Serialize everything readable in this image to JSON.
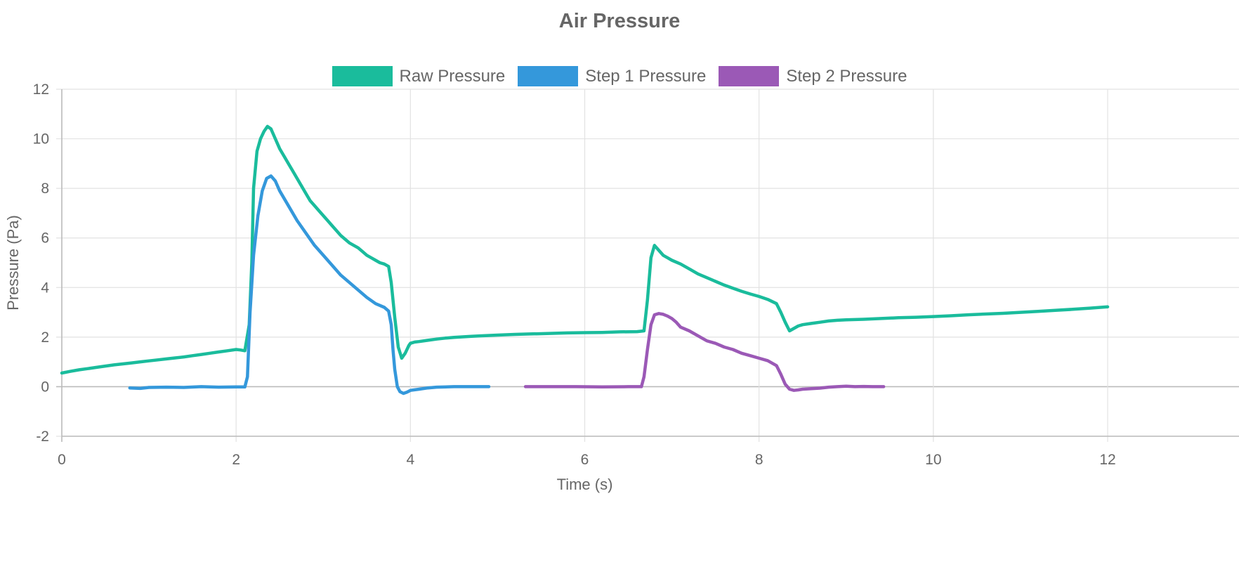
{
  "chart_data": {
    "type": "line",
    "title": "Air Pressure",
    "xlabel": "Time (s)",
    "ylabel": "Pressure (Pa)",
    "xlim": [
      0,
      12
    ],
    "ylim": [
      -2,
      12
    ],
    "x_ticks": [
      "0",
      "2",
      "4",
      "6",
      "8",
      "10",
      "12"
    ],
    "y_ticks": [
      "12",
      "10",
      "8",
      "6",
      "4",
      "2",
      "0",
      "-2"
    ],
    "grid": true,
    "legend_position": "top",
    "series": [
      {
        "name": "Raw Pressure",
        "color": "#1abc9c",
        "x": [
          0.0,
          0.1,
          0.2,
          0.3,
          0.4,
          0.5,
          0.6,
          0.7,
          0.8,
          0.9,
          1.0,
          1.1,
          1.2,
          1.3,
          1.4,
          1.5,
          1.6,
          1.7,
          1.8,
          1.9,
          2.0,
          2.05,
          2.1,
          2.15,
          2.18,
          2.2,
          2.24,
          2.28,
          2.32,
          2.36,
          2.4,
          2.45,
          2.5,
          2.55,
          2.6,
          2.65,
          2.7,
          2.75,
          2.8,
          2.85,
          2.9,
          2.95,
          3.0,
          3.05,
          3.1,
          3.15,
          3.2,
          3.25,
          3.3,
          3.35,
          3.4,
          3.45,
          3.5,
          3.55,
          3.6,
          3.65,
          3.7,
          3.75,
          3.78,
          3.82,
          3.86,
          3.9,
          3.94,
          3.98,
          4.0,
          4.05,
          4.1,
          4.2,
          4.3,
          4.4,
          4.5,
          4.6,
          4.7,
          4.8,
          5.0,
          5.2,
          5.4,
          5.6,
          5.8,
          6.0,
          6.2,
          6.4,
          6.6,
          6.68,
          6.72,
          6.76,
          6.8,
          6.85,
          6.9,
          6.95,
          7.0,
          7.1,
          7.2,
          7.3,
          7.4,
          7.5,
          7.6,
          7.7,
          7.8,
          7.9,
          8.0,
          8.1,
          8.2,
          8.25,
          8.3,
          8.35,
          8.4,
          8.45,
          8.5,
          8.6,
          8.7,
          8.8,
          8.9,
          9.0,
          9.2,
          9.4,
          9.6,
          9.8,
          10.0,
          10.2,
          10.4,
          10.6,
          10.8,
          11.0,
          11.2,
          11.4,
          11.6,
          11.8,
          12.0
        ],
        "y": [
          0.55,
          0.62,
          0.68,
          0.73,
          0.78,
          0.83,
          0.88,
          0.92,
          0.96,
          1.0,
          1.04,
          1.08,
          1.12,
          1.16,
          1.2,
          1.25,
          1.3,
          1.35,
          1.4,
          1.45,
          1.5,
          1.48,
          1.45,
          2.5,
          5.0,
          8.0,
          9.5,
          10.0,
          10.3,
          10.5,
          10.4,
          10.0,
          9.6,
          9.3,
          9.0,
          8.7,
          8.4,
          8.1,
          7.8,
          7.5,
          7.3,
          7.1,
          6.9,
          6.7,
          6.5,
          6.3,
          6.1,
          5.95,
          5.8,
          5.7,
          5.6,
          5.45,
          5.3,
          5.2,
          5.1,
          5.0,
          4.95,
          4.85,
          4.2,
          2.8,
          1.6,
          1.15,
          1.35,
          1.65,
          1.75,
          1.8,
          1.82,
          1.87,
          1.92,
          1.96,
          1.99,
          2.01,
          2.03,
          2.05,
          2.08,
          2.11,
          2.13,
          2.15,
          2.17,
          2.18,
          2.19,
          2.21,
          2.22,
          2.25,
          3.5,
          5.2,
          5.7,
          5.5,
          5.3,
          5.2,
          5.1,
          4.95,
          4.75,
          4.55,
          4.4,
          4.25,
          4.1,
          3.97,
          3.85,
          3.74,
          3.64,
          3.52,
          3.35,
          3.0,
          2.6,
          2.25,
          2.35,
          2.45,
          2.5,
          2.55,
          2.6,
          2.65,
          2.68,
          2.7,
          2.72,
          2.75,
          2.78,
          2.8,
          2.83,
          2.86,
          2.9,
          2.93,
          2.96,
          3.0,
          3.04,
          3.08,
          3.12,
          3.17,
          3.22
        ]
      },
      {
        "name": "Step 1 Pressure",
        "color": "#3498db",
        "x": [
          0.78,
          0.9,
          1.0,
          1.2,
          1.4,
          1.6,
          1.8,
          2.0,
          2.1,
          2.13,
          2.16,
          2.2,
          2.25,
          2.3,
          2.35,
          2.4,
          2.45,
          2.5,
          2.6,
          2.7,
          2.8,
          2.9,
          3.0,
          3.1,
          3.2,
          3.3,
          3.4,
          3.5,
          3.6,
          3.7,
          3.75,
          3.78,
          3.8,
          3.82,
          3.85,
          3.88,
          3.92,
          3.96,
          4.0,
          4.1,
          4.2,
          4.3,
          4.5,
          4.7,
          4.9
        ],
        "y": [
          -0.05,
          -0.07,
          -0.03,
          -0.02,
          -0.03,
          0.0,
          -0.02,
          -0.01,
          -0.01,
          0.4,
          3.0,
          5.3,
          6.9,
          7.9,
          8.4,
          8.5,
          8.3,
          7.9,
          7.3,
          6.7,
          6.2,
          5.7,
          5.3,
          4.9,
          4.5,
          4.2,
          3.9,
          3.6,
          3.35,
          3.2,
          3.05,
          2.5,
          1.5,
          0.7,
          0.0,
          -0.2,
          -0.27,
          -0.22,
          -0.15,
          -0.1,
          -0.05,
          -0.02,
          0.0,
          0.0,
          0.0
        ]
      },
      {
        "name": "Step 2 Pressure",
        "color": "#9b59b6",
        "x": [
          5.32,
          5.6,
          5.9,
          6.2,
          6.5,
          6.65,
          6.68,
          6.72,
          6.76,
          6.8,
          6.85,
          6.9,
          6.95,
          7.0,
          7.05,
          7.1,
          7.2,
          7.3,
          7.4,
          7.5,
          7.6,
          7.7,
          7.8,
          7.9,
          8.0,
          8.1,
          8.2,
          8.25,
          8.3,
          8.35,
          8.4,
          8.45,
          8.5,
          8.6,
          8.7,
          8.8,
          8.9,
          9.0,
          9.1,
          9.2,
          9.3,
          9.43
        ],
        "y": [
          0.0,
          0.0,
          0.0,
          -0.01,
          0.0,
          0.0,
          0.4,
          1.5,
          2.5,
          2.9,
          2.95,
          2.92,
          2.85,
          2.75,
          2.6,
          2.4,
          2.25,
          2.05,
          1.85,
          1.75,
          1.6,
          1.5,
          1.35,
          1.25,
          1.15,
          1.05,
          0.85,
          0.5,
          0.1,
          -0.1,
          -0.15,
          -0.13,
          -0.1,
          -0.08,
          -0.06,
          -0.02,
          0.0,
          0.02,
          0.0,
          0.01,
          0.0,
          0.0
        ]
      }
    ]
  }
}
